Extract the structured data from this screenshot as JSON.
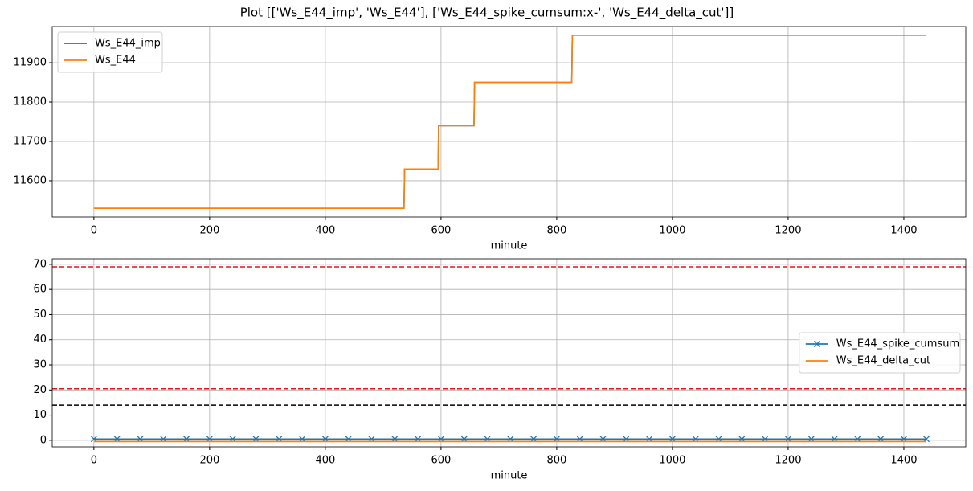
{
  "title": "Plot [['Ws_E44_imp', 'Ws_E44'], ['Ws_E44_spike_cumsum:x-', 'Ws_E44_delta_cut']]",
  "chart_data": [
    {
      "type": "line",
      "xlabel": "minute",
      "x": [
        0,
        536,
        537,
        595,
        596,
        657,
        658,
        826,
        827,
        1439
      ],
      "series": [
        {
          "name": "Ws_E44_imp",
          "color": "#1f77b4",
          "values": [
            11530,
            11530,
            11630,
            11630,
            11740,
            11740,
            11850,
            11850,
            11970,
            11970
          ]
        },
        {
          "name": "Ws_E44",
          "color": "#ff7f0e",
          "values": [
            11530,
            11530,
            11630,
            11630,
            11740,
            11740,
            11850,
            11850,
            11970,
            11970
          ]
        }
      ],
      "xlim": [
        -72,
        1507
      ],
      "xticks": [
        0,
        200,
        400,
        600,
        800,
        1000,
        1200,
        1400
      ],
      "ylim": [
        11508,
        11992
      ],
      "yticks": [
        11600,
        11700,
        11800,
        11900
      ],
      "grid": true,
      "legend": "upper left"
    },
    {
      "type": "line",
      "xlabel": "minute",
      "x": [
        0,
        40,
        80,
        120,
        160,
        200,
        240,
        280,
        320,
        360,
        400,
        440,
        480,
        520,
        560,
        600,
        640,
        680,
        720,
        760,
        800,
        840,
        880,
        920,
        960,
        1000,
        1040,
        1080,
        1120,
        1160,
        1200,
        1240,
        1280,
        1320,
        1360,
        1400,
        1439
      ],
      "series": [
        {
          "name": "Ws_E44_spike_cumsum",
          "color": "#1f77b4",
          "marker": "x",
          "values": [
            0.5,
            0.5,
            0.5,
            0.5,
            0.5,
            0.5,
            0.5,
            0.5,
            0.5,
            0.5,
            0.5,
            0.5,
            0.5,
            0.5,
            0.5,
            0.5,
            0.5,
            0.5,
            0.5,
            0.5,
            0.5,
            0.5,
            0.5,
            0.5,
            0.5,
            0.5,
            0.5,
            0.5,
            0.5,
            0.5,
            0.5,
            0.5,
            0.5,
            0.5,
            0.5,
            0.5,
            0.5
          ]
        },
        {
          "name": "Ws_E44_delta_cut",
          "color": "#ff7f0e",
          "values": [
            -0.5,
            -0.5,
            -0.5,
            -0.5,
            -0.5,
            -0.5,
            -0.5,
            -0.5,
            -0.5,
            -0.5,
            -0.5,
            -0.5,
            -0.5,
            -0.5,
            -0.5,
            -0.5,
            -0.5,
            -0.5,
            -0.5,
            -0.5,
            -0.5,
            -0.5,
            -0.5,
            -0.5,
            -0.5,
            -0.5,
            -0.5,
            -0.5,
            -0.5,
            -0.5,
            -0.5,
            -0.5,
            -0.5,
            -0.5,
            -0.5,
            -0.5,
            -0.5
          ]
        }
      ],
      "hlines": [
        {
          "value": 69,
          "color": "#e8141a"
        },
        {
          "value": 20.5,
          "color": "#e8141a"
        },
        {
          "value": 14,
          "color": "#000000"
        }
      ],
      "xlim": [
        -72,
        1507
      ],
      "xticks": [
        0,
        200,
        400,
        600,
        800,
        1000,
        1200,
        1400
      ],
      "ylim": [
        -2.6,
        72.2
      ],
      "yticks": [
        0,
        10,
        20,
        30,
        40,
        50,
        60,
        70
      ],
      "grid": true,
      "legend": "center right"
    }
  ]
}
